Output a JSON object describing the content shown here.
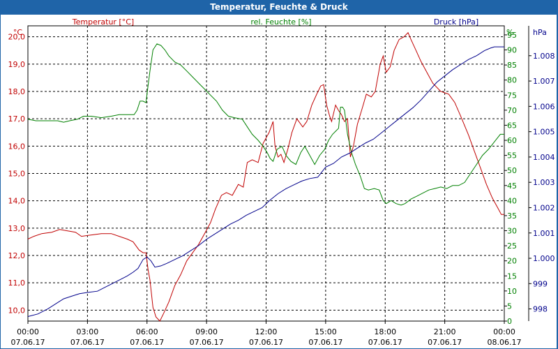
{
  "window": {
    "title": "Temperatur, Feuchte & Druck"
  },
  "chart_data": {
    "type": "line",
    "title": "Temperatur, Feuchte & Druck",
    "colors": {
      "temperature": "#c00000",
      "humidity": "#008000",
      "pressure": "#00008b",
      "grid": "#000000"
    },
    "x": {
      "range_hours": [
        0,
        24
      ],
      "ticks": [
        {
          "h": 0,
          "time": "00:00",
          "date": "07.06.17"
        },
        {
          "h": 3,
          "time": "03:00",
          "date": "07.06.17"
        },
        {
          "h": 6,
          "time": "06:00",
          "date": "07.06.17"
        },
        {
          "h": 9,
          "time": "09:00",
          "date": "07.06.17"
        },
        {
          "h": 12,
          "time": "12:00",
          "date": "07.06.17"
        },
        {
          "h": 15,
          "time": "15:00",
          "date": "07.06.17"
        },
        {
          "h": 18,
          "time": "18:00",
          "date": "07.06.17"
        },
        {
          "h": 21,
          "time": "21:00",
          "date": "07.06.17"
        },
        {
          "h": 24,
          "time": "00:00",
          "date": "08.06.17"
        }
      ]
    },
    "axes": {
      "temperature": {
        "unit": "°C",
        "label": "Temperatur [°C]",
        "range": [
          9.6,
          20.4
        ],
        "ticks": [
          "10,0",
          "11,0",
          "12,0",
          "13,0",
          "14,0",
          "15,0",
          "16,0",
          "17,0",
          "18,0",
          "19,0",
          "20,0"
        ]
      },
      "humidity": {
        "unit": "%",
        "label": "rel. Feuchte [%]",
        "range": [
          0,
          98
        ],
        "ticks": [
          "0",
          "5",
          "10",
          "15",
          "20",
          "25",
          "30",
          "35",
          "40",
          "45",
          "50",
          "55",
          "60",
          "65",
          "70",
          "75",
          "80",
          "85",
          "90",
          "95"
        ]
      },
      "pressure": {
        "unit": "hPa",
        "label": "Druck [hPa]",
        "range": [
          997.52,
          1009.18
        ],
        "ticks": [
          "998",
          "999",
          "1.000",
          "1.001",
          "1.002",
          "1.003",
          "1.004",
          "1.005",
          "1.006",
          "1.007",
          "1.008"
        ]
      }
    },
    "series": [
      {
        "name": "Temperatur [°C]",
        "axis": "temperature",
        "points": [
          [
            0,
            12.6
          ],
          [
            0.3,
            12.7
          ],
          [
            0.7,
            12.8
          ],
          [
            1.2,
            12.85
          ],
          [
            1.6,
            12.95
          ],
          [
            2.0,
            12.9
          ],
          [
            2.4,
            12.85
          ],
          [
            2.7,
            12.7
          ],
          [
            3.2,
            12.75
          ],
          [
            3.7,
            12.8
          ],
          [
            4.2,
            12.8
          ],
          [
            4.6,
            12.7
          ],
          [
            5.0,
            12.6
          ],
          [
            5.3,
            12.5
          ],
          [
            5.6,
            12.2
          ],
          [
            5.8,
            12.1
          ],
          [
            5.95,
            12.1
          ],
          [
            6.05,
            11.5
          ],
          [
            6.15,
            11.1
          ],
          [
            6.3,
            10.1
          ],
          [
            6.45,
            9.75
          ],
          [
            6.65,
            9.6
          ],
          [
            6.85,
            9.9
          ],
          [
            7.1,
            10.3
          ],
          [
            7.4,
            10.9
          ],
          [
            7.7,
            11.3
          ],
          [
            8.0,
            11.8
          ],
          [
            8.3,
            12.1
          ],
          [
            8.6,
            12.4
          ],
          [
            8.9,
            12.8
          ],
          [
            9.2,
            13.2
          ],
          [
            9.45,
            13.7
          ],
          [
            9.75,
            14.2
          ],
          [
            10.0,
            14.3
          ],
          [
            10.3,
            14.2
          ],
          [
            10.6,
            14.6
          ],
          [
            10.85,
            14.5
          ],
          [
            11.05,
            15.4
          ],
          [
            11.3,
            15.5
          ],
          [
            11.6,
            15.4
          ],
          [
            11.85,
            16.1
          ],
          [
            12.15,
            16.5
          ],
          [
            12.35,
            16.9
          ],
          [
            12.45,
            16.0
          ],
          [
            12.6,
            15.6
          ],
          [
            12.75,
            15.7
          ],
          [
            12.9,
            15.4
          ],
          [
            13.1,
            15.9
          ],
          [
            13.3,
            16.5
          ],
          [
            13.55,
            17.0
          ],
          [
            13.85,
            16.7
          ],
          [
            14.05,
            16.9
          ],
          [
            14.3,
            17.5
          ],
          [
            14.55,
            17.9
          ],
          [
            14.75,
            18.2
          ],
          [
            14.9,
            18.25
          ],
          [
            15.05,
            17.5
          ],
          [
            15.2,
            17.1
          ],
          [
            15.3,
            16.9
          ],
          [
            15.5,
            17.5
          ],
          [
            15.65,
            17.3
          ],
          [
            15.8,
            17.15
          ],
          [
            15.95,
            16.9
          ],
          [
            16.1,
            17.0
          ],
          [
            16.25,
            15.6
          ],
          [
            16.4,
            16.0
          ],
          [
            16.6,
            16.8
          ],
          [
            16.85,
            17.4
          ],
          [
            17.05,
            17.9
          ],
          [
            17.3,
            17.8
          ],
          [
            17.5,
            18.0
          ],
          [
            17.75,
            19.0
          ],
          [
            17.9,
            19.3
          ],
          [
            18.05,
            18.7
          ],
          [
            18.25,
            18.9
          ],
          [
            18.45,
            19.5
          ],
          [
            18.7,
            19.9
          ],
          [
            18.95,
            20.0
          ],
          [
            19.15,
            20.15
          ],
          [
            19.3,
            19.9
          ],
          [
            19.55,
            19.5
          ],
          [
            19.8,
            19.1
          ],
          [
            20.1,
            18.7
          ],
          [
            20.4,
            18.3
          ],
          [
            20.8,
            18.0
          ],
          [
            21.2,
            17.9
          ],
          [
            21.5,
            17.6
          ],
          [
            21.8,
            17.1
          ],
          [
            22.2,
            16.4
          ],
          [
            22.5,
            15.8
          ],
          [
            22.8,
            15.2
          ],
          [
            23.1,
            14.6
          ],
          [
            23.4,
            14.1
          ],
          [
            23.7,
            13.7
          ],
          [
            23.85,
            13.5
          ],
          [
            24.0,
            13.5
          ]
        ]
      },
      {
        "name": "rel. Feuchte [%]",
        "axis": "humidity",
        "points": [
          [
            0,
            67
          ],
          [
            0.4,
            66.5
          ],
          [
            1.0,
            66.5
          ],
          [
            1.5,
            66.5
          ],
          [
            1.8,
            66
          ],
          [
            2.1,
            66.5
          ],
          [
            2.5,
            67
          ],
          [
            2.8,
            68
          ],
          [
            3.2,
            68
          ],
          [
            3.7,
            67.5
          ],
          [
            4.2,
            68
          ],
          [
            4.6,
            68.5
          ],
          [
            5.1,
            68.5
          ],
          [
            5.35,
            68.5
          ],
          [
            5.5,
            70
          ],
          [
            5.65,
            73
          ],
          [
            5.8,
            73
          ],
          [
            5.95,
            72.5
          ],
          [
            6.05,
            78
          ],
          [
            6.15,
            83
          ],
          [
            6.3,
            90
          ],
          [
            6.5,
            92
          ],
          [
            6.7,
            91.5
          ],
          [
            6.9,
            90
          ],
          [
            7.1,
            88
          ],
          [
            7.4,
            86
          ],
          [
            7.7,
            85
          ],
          [
            8.0,
            83
          ],
          [
            8.3,
            81
          ],
          [
            8.6,
            79
          ],
          [
            8.9,
            77
          ],
          [
            9.2,
            75
          ],
          [
            9.5,
            73
          ],
          [
            9.8,
            70
          ],
          [
            10.1,
            68
          ],
          [
            10.4,
            67.5
          ],
          [
            10.8,
            67
          ],
          [
            11.1,
            64
          ],
          [
            11.3,
            62
          ],
          [
            11.6,
            60
          ],
          [
            11.85,
            58
          ],
          [
            12.05,
            56
          ],
          [
            12.2,
            54
          ],
          [
            12.35,
            53
          ],
          [
            12.55,
            57
          ],
          [
            12.8,
            58
          ],
          [
            13.0,
            55
          ],
          [
            13.25,
            53
          ],
          [
            13.5,
            52
          ],
          [
            13.75,
            56
          ],
          [
            13.95,
            58
          ],
          [
            14.2,
            55
          ],
          [
            14.45,
            52
          ],
          [
            14.7,
            55
          ],
          [
            14.95,
            57
          ],
          [
            15.15,
            60
          ],
          [
            15.35,
            62
          ],
          [
            15.5,
            63
          ],
          [
            15.65,
            64
          ],
          [
            15.75,
            71
          ],
          [
            15.85,
            71
          ],
          [
            15.95,
            70
          ],
          [
            16.1,
            62
          ],
          [
            16.3,
            56
          ],
          [
            16.5,
            52
          ],
          [
            16.75,
            48
          ],
          [
            16.95,
            44
          ],
          [
            17.15,
            43.5
          ],
          [
            17.45,
            44
          ],
          [
            17.7,
            43.5
          ],
          [
            17.9,
            40
          ],
          [
            18.05,
            39
          ],
          [
            18.3,
            40
          ],
          [
            18.55,
            39
          ],
          [
            18.8,
            38.5
          ],
          [
            19.0,
            39
          ],
          [
            19.3,
            40.5
          ],
          [
            19.6,
            41.5
          ],
          [
            19.9,
            42.5
          ],
          [
            20.2,
            43.5
          ],
          [
            20.5,
            44
          ],
          [
            20.8,
            44.5
          ],
          [
            21.1,
            44
          ],
          [
            21.4,
            45
          ],
          [
            21.7,
            45
          ],
          [
            22.0,
            46
          ],
          [
            22.3,
            49
          ],
          [
            22.6,
            52
          ],
          [
            22.9,
            55
          ],
          [
            23.2,
            57
          ],
          [
            23.5,
            59.5
          ],
          [
            23.8,
            62
          ],
          [
            24.0,
            62
          ]
        ]
      },
      {
        "name": "Druck [hPa]",
        "axis": "pressure",
        "points": [
          [
            0,
            997.7
          ],
          [
            0.5,
            997.8
          ],
          [
            1.0,
            998.0
          ],
          [
            1.4,
            998.2
          ],
          [
            1.8,
            998.4
          ],
          [
            2.2,
            998.5
          ],
          [
            2.6,
            998.6
          ],
          [
            3.0,
            998.65
          ],
          [
            3.5,
            998.7
          ],
          [
            4.0,
            998.9
          ],
          [
            4.5,
            999.1
          ],
          [
            5.0,
            999.3
          ],
          [
            5.3,
            999.45
          ],
          [
            5.55,
            999.6
          ],
          [
            5.8,
            999.95
          ],
          [
            6.0,
            1000.05
          ],
          [
            6.2,
            999.9
          ],
          [
            6.4,
            999.65
          ],
          [
            6.7,
            999.7
          ],
          [
            7.0,
            999.8
          ],
          [
            7.4,
            999.95
          ],
          [
            7.8,
            1000.1
          ],
          [
            8.2,
            1000.3
          ],
          [
            8.6,
            1000.5
          ],
          [
            9.0,
            1000.75
          ],
          [
            9.4,
            1000.95
          ],
          [
            9.8,
            1001.15
          ],
          [
            10.2,
            1001.35
          ],
          [
            10.6,
            1001.5
          ],
          [
            11.0,
            1001.7
          ],
          [
            11.4,
            1001.85
          ],
          [
            11.8,
            1002.0
          ],
          [
            12.2,
            1002.3
          ],
          [
            12.6,
            1002.55
          ],
          [
            13.0,
            1002.75
          ],
          [
            13.4,
            1002.9
          ],
          [
            13.8,
            1003.05
          ],
          [
            14.2,
            1003.15
          ],
          [
            14.6,
            1003.2
          ],
          [
            15.0,
            1003.6
          ],
          [
            15.4,
            1003.75
          ],
          [
            15.8,
            1004.0
          ],
          [
            16.2,
            1004.15
          ],
          [
            16.6,
            1004.35
          ],
          [
            17.0,
            1004.55
          ],
          [
            17.4,
            1004.7
          ],
          [
            17.8,
            1004.95
          ],
          [
            18.2,
            1005.2
          ],
          [
            18.6,
            1005.45
          ],
          [
            19.0,
            1005.7
          ],
          [
            19.4,
            1005.95
          ],
          [
            19.8,
            1006.25
          ],
          [
            20.2,
            1006.6
          ],
          [
            20.6,
            1006.95
          ],
          [
            21.0,
            1007.2
          ],
          [
            21.4,
            1007.45
          ],
          [
            21.8,
            1007.65
          ],
          [
            22.2,
            1007.85
          ],
          [
            22.6,
            1008.0
          ],
          [
            23.0,
            1008.2
          ],
          [
            23.3,
            1008.3
          ],
          [
            23.5,
            1008.35
          ],
          [
            24.0,
            1008.35
          ]
        ]
      }
    ]
  }
}
